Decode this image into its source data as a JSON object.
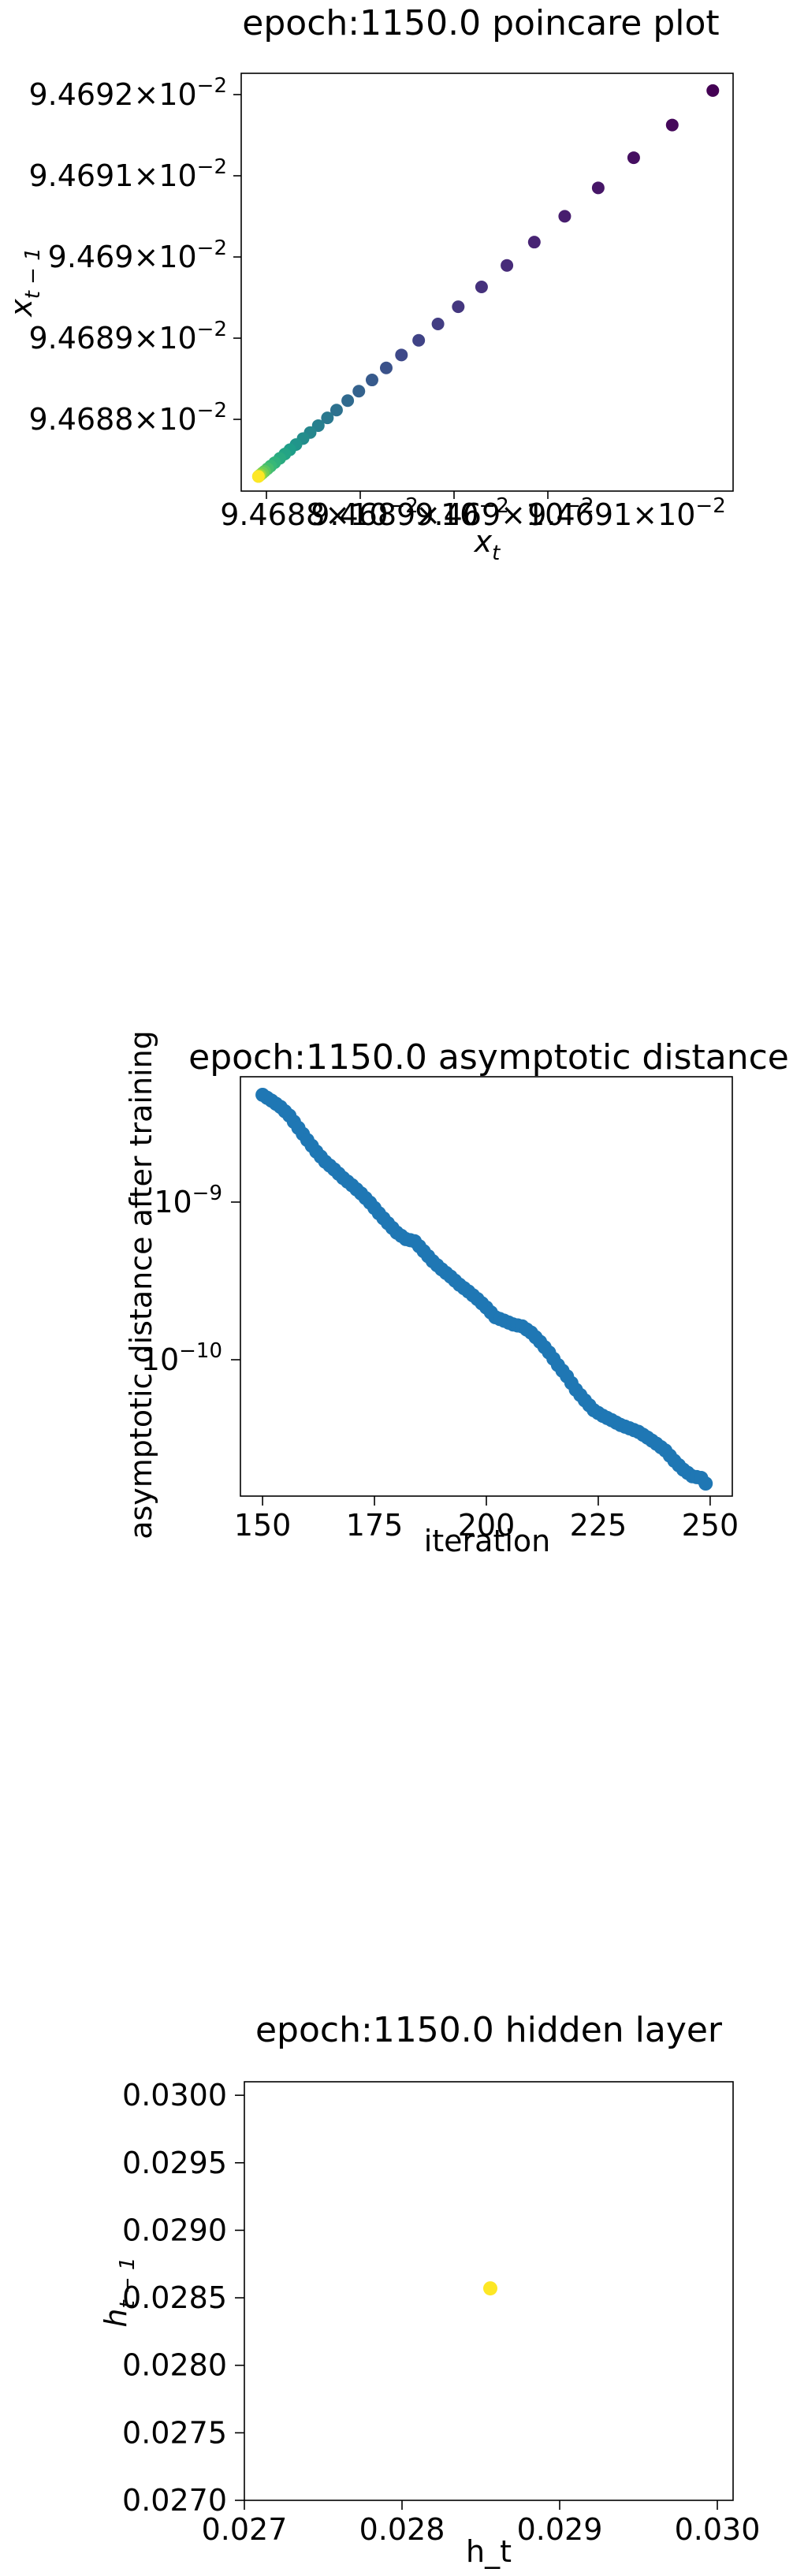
{
  "chart_data": [
    {
      "type": "scatter",
      "title": "epoch:1150.0 poincare plot",
      "xlabel": "x_t",
      "ylabel": "x_{t-1}",
      "scale": "log",
      "x_ticklabels": [
        "9.4688 × 10^-2",
        "9.4689 × 10^-2",
        "9.469 × 10^-2",
        "9.4691 × 10^-2"
      ],
      "y_ticklabels": [
        "9.4688 × 10^-2",
        "9.4689 × 10^-2",
        "9.469 × 10^-2",
        "9.4691 × 10^-2",
        "9.4692 × 10^-2"
      ],
      "xlim": [
        0.09468748,
        0.09469233
      ],
      "ylim": [
        0.09468748,
        0.09469233
      ],
      "colormap": "viridis",
      "points": [
        {
          "x": 0.09469213,
          "y": 0.09469213,
          "c": 0.0
        },
        {
          "x": 0.09469173,
          "y": 0.09469173,
          "c": 0.02
        },
        {
          "x": 0.09469135,
          "y": 0.09469135,
          "c": 0.04
        },
        {
          "x": 0.094691,
          "y": 0.094691,
          "c": 0.06
        },
        {
          "x": 0.09469067,
          "y": 0.09469067,
          "c": 0.08
        },
        {
          "x": 0.09469037,
          "y": 0.09469037,
          "c": 0.1
        },
        {
          "x": 0.0946901,
          "y": 0.0946901,
          "c": 0.12
        },
        {
          "x": 0.09468985,
          "y": 0.09468985,
          "c": 0.14
        },
        {
          "x": 0.09468962,
          "y": 0.09468962,
          "c": 0.16
        },
        {
          "x": 0.09468942,
          "y": 0.09468942,
          "c": 0.18
        },
        {
          "x": 0.09468923,
          "y": 0.09468923,
          "c": 0.2
        },
        {
          "x": 0.09468906,
          "y": 0.09468906,
          "c": 0.22
        },
        {
          "x": 0.09468891,
          "y": 0.09468891,
          "c": 0.25
        },
        {
          "x": 0.09468877,
          "y": 0.09468877,
          "c": 0.28
        },
        {
          "x": 0.09468864,
          "y": 0.09468864,
          "c": 0.31
        },
        {
          "x": 0.09468853,
          "y": 0.09468853,
          "c": 0.34
        },
        {
          "x": 0.09468842,
          "y": 0.09468842,
          "c": 0.37
        },
        {
          "x": 0.09468833,
          "y": 0.09468833,
          "c": 0.4
        },
        {
          "x": 0.09468824,
          "y": 0.09468824,
          "c": 0.43
        },
        {
          "x": 0.09468816,
          "y": 0.09468816,
          "c": 0.46
        },
        {
          "x": 0.09468809,
          "y": 0.09468809,
          "c": 0.49
        },
        {
          "x": 0.09468802,
          "y": 0.09468802,
          "c": 0.52
        },
        {
          "x": 0.09468796,
          "y": 0.09468796,
          "c": 0.55
        },
        {
          "x": 0.09468791,
          "y": 0.09468791,
          "c": 0.58
        },
        {
          "x": 0.09468786,
          "y": 0.09468786,
          "c": 0.61
        },
        {
          "x": 0.09468781,
          "y": 0.09468781,
          "c": 0.64
        },
        {
          "x": 0.09468777,
          "y": 0.09468777,
          "c": 0.67
        },
        {
          "x": 0.09468774,
          "y": 0.09468774,
          "c": 0.7
        },
        {
          "x": 0.09468771,
          "y": 0.09468771,
          "c": 0.74
        },
        {
          "x": 0.09468769,
          "y": 0.09468769,
          "c": 0.78
        },
        {
          "x": 0.09468767,
          "y": 0.09468767,
          "c": 0.82
        },
        {
          "x": 0.09468766,
          "y": 0.09468766,
          "c": 0.86
        },
        {
          "x": 0.09468765,
          "y": 0.09468765,
          "c": 0.9
        },
        {
          "x": 0.09468765,
          "y": 0.09468765,
          "c": 1.0
        }
      ]
    },
    {
      "type": "scatter",
      "title": "epoch:1150.0 asymptotic distance",
      "xlabel": "iteration",
      "ylabel": "asymptotic distance after training",
      "yscale": "log",
      "xlim": [
        145.05,
        254.95
      ],
      "ylim": [
        1.5e-11,
        6.5e-09
      ],
      "x_ticks": [
        150,
        175,
        200,
        225,
        250
      ],
      "x_ticklabels": [
        "150",
        "175",
        "200",
        "225",
        "250"
      ],
      "y_ticks": [
        1e-10,
        1e-09
      ],
      "y_ticklabels": [
        "10^-10",
        "10^-9"
      ],
      "color": "#1f77b4",
      "points": [
        {
          "x": 150,
          "y": 5e-09
        },
        {
          "x": 152,
          "y": 4.6e-09
        },
        {
          "x": 154,
          "y": 4.2e-09
        },
        {
          "x": 156,
          "y": 3.7e-09
        },
        {
          "x": 158,
          "y": 3.1e-09
        },
        {
          "x": 160,
          "y": 2.6e-09
        },
        {
          "x": 162,
          "y": 2.2e-09
        },
        {
          "x": 164,
          "y": 1.9e-09
        },
        {
          "x": 166,
          "y": 1.7e-09
        },
        {
          "x": 168,
          "y": 1.5e-09
        },
        {
          "x": 170,
          "y": 1.35e-09
        },
        {
          "x": 172,
          "y": 1.2e-09
        },
        {
          "x": 174,
          "y": 1.05e-09
        },
        {
          "x": 176,
          "y": 9e-10
        },
        {
          "x": 178,
          "y": 7.8e-10
        },
        {
          "x": 180,
          "y": 6.8e-10
        },
        {
          "x": 182,
          "y": 6.2e-10
        },
        {
          "x": 184,
          "y": 6e-10
        },
        {
          "x": 186,
          "y": 5.2e-10
        },
        {
          "x": 188,
          "y": 4.5e-10
        },
        {
          "x": 190,
          "y": 4e-10
        },
        {
          "x": 192,
          "y": 3.6e-10
        },
        {
          "x": 194,
          "y": 3.2e-10
        },
        {
          "x": 196,
          "y": 2.9e-10
        },
        {
          "x": 198,
          "y": 2.6e-10
        },
        {
          "x": 200,
          "y": 2.3e-10
        },
        {
          "x": 202,
          "y": 2e-10
        },
        {
          "x": 204,
          "y": 1.9e-10
        },
        {
          "x": 206,
          "y": 1.8e-10
        },
        {
          "x": 208,
          "y": 1.75e-10
        },
        {
          "x": 210,
          "y": 1.6e-10
        },
        {
          "x": 212,
          "y": 1.4e-10
        },
        {
          "x": 214,
          "y": 1.2e-10
        },
        {
          "x": 216,
          "y": 1e-10
        },
        {
          "x": 218,
          "y": 8.5e-11
        },
        {
          "x": 220,
          "y": 7e-11
        },
        {
          "x": 222,
          "y": 6e-11
        },
        {
          "x": 224,
          "y": 5.2e-11
        },
        {
          "x": 226,
          "y": 4.8e-11
        },
        {
          "x": 228,
          "y": 4.5e-11
        },
        {
          "x": 230,
          "y": 4.2e-11
        },
        {
          "x": 232,
          "y": 4e-11
        },
        {
          "x": 234,
          "y": 3.8e-11
        },
        {
          "x": 236,
          "y": 3.5e-11
        },
        {
          "x": 238,
          "y": 3.2e-11
        },
        {
          "x": 240,
          "y": 2.9e-11
        },
        {
          "x": 242,
          "y": 2.5e-11
        },
        {
          "x": 244,
          "y": 2.2e-11
        },
        {
          "x": 246,
          "y": 2e-11
        },
        {
          "x": 248,
          "y": 1.95e-11
        },
        {
          "x": 249,
          "y": 1.8e-11
        }
      ]
    },
    {
      "type": "scatter",
      "title": "epoch:1150.0 hidden layer",
      "xlabel": "h_t",
      "ylabel": "h_{t-1}",
      "xlim": [
        0.027,
        0.0301
      ],
      "ylim": [
        0.027,
        0.0301
      ],
      "x_ticks": [
        0.027,
        0.028,
        0.029,
        0.03
      ],
      "x_ticklabels": [
        "0.027",
        "0.028",
        "0.029",
        "0.030"
      ],
      "y_ticks": [
        0.027,
        0.0275,
        0.028,
        0.0285,
        0.029,
        0.0295,
        0.03
      ],
      "y_ticklabels": [
        "0.0270",
        "0.0275",
        "0.0280",
        "0.0285",
        "0.0290",
        "0.0295",
        "0.0300"
      ],
      "color": "#fde725",
      "points": [
        {
          "x": 0.02856,
          "y": 0.02857
        }
      ]
    }
  ]
}
